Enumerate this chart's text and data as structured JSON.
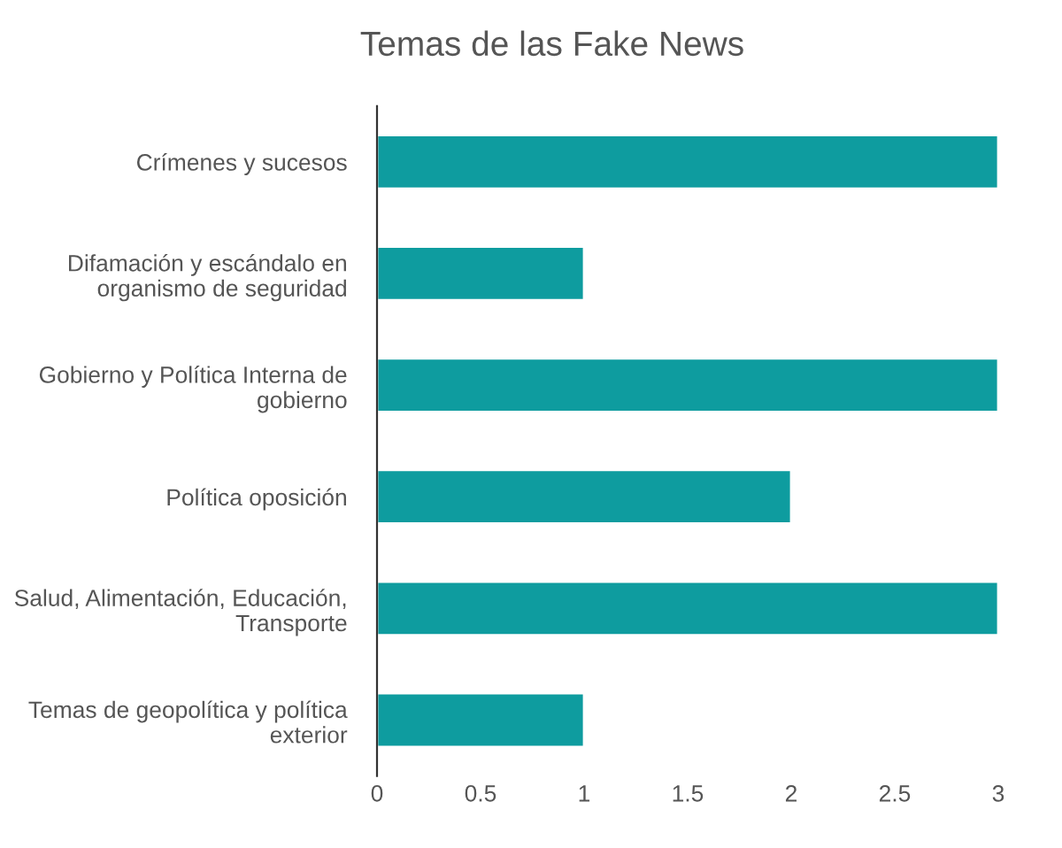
{
  "chart_data": {
    "type": "bar",
    "orientation": "horizontal",
    "title": "Temas de las Fake News",
    "categories": [
      "Crímenes y sucesos",
      "Difamación y escándalo en organismo de seguridad",
      "Gobierno y Política Interna de gobierno",
      "Política oposición",
      "Salud, Alimentación, Educación, Transporte",
      "Temas de geopolítica y política exterior"
    ],
    "values": [
      3,
      1,
      3,
      2,
      3,
      1
    ],
    "color": "#0e9c9f",
    "xlim": [
      0,
      3
    ],
    "xticks": [
      0,
      0.5,
      1,
      1.5,
      2,
      2.5,
      3
    ],
    "grid": false
  }
}
